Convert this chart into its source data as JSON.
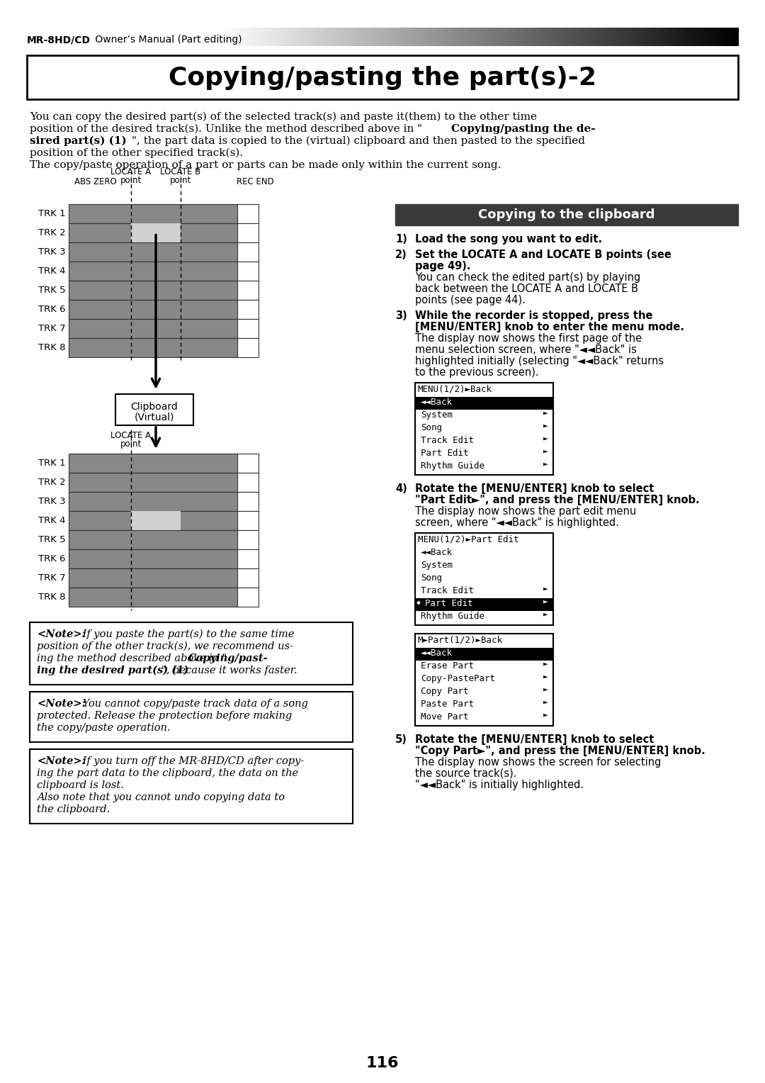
{
  "title": "Copying/pasting the part(s)-2",
  "header_bold": "MR-8HD/CD",
  "header_normal": " Owner’s Manual (Part editing)",
  "page_number": "116",
  "section_title": "Copying to the clipboard",
  "step1_bold": "Load the song you want to edit.",
  "step2_bold": "Set the LOCATE A and LOCATE B points (see\npage 49).",
  "step2_normal": "You can check the edited part(s) by playing\nback between the LOCATE A and LOCATE B\npoints (see page 44).",
  "step3_bold": "While the recorder is stopped, press the\n[MENU/ENTER] knob to enter the menu mode.",
  "step3_normal": "The display now shows the first page of the\nmenu selection screen, where \"◄◄Back\" is\nhighlighted initially (selecting \"◄◄Back\" returns\nto the previous screen).",
  "step4_bold": "Rotate the [MENU/ENTER] knob to select\n\"Part Edit►\", and press the [MENU/ENTER] knob.",
  "step4_normal": "The display now shows the part edit menu\nscreen, where \"◄◄Back\" is highlighted.",
  "step5_bold": "Rotate the [MENU/ENTER] knob to select\n\"Copy Part►\", and press the [MENU/ENTER] knob.",
  "step5_normal": "The display now shows the screen for selecting\nthe source track(s).\n\"◄◄Back\" is initially highlighted.",
  "menu1_title": "MENU(1/2)►Back",
  "menu1_items": [
    "◄◄Back",
    "System",
    "Song",
    "Track Edit",
    "Part Edit",
    "Rhythm Guide"
  ],
  "menu1_arrows": [
    false,
    true,
    true,
    true,
    true,
    true
  ],
  "menu1_highlight": 0,
  "menu2_title": "MENU(1/2)►Part Edit",
  "menu2_items": [
    "◄◄Back",
    "System",
    "Song",
    "Track Edit",
    "Part Edit",
    "Rhythm Guide"
  ],
  "menu2_arrows": [
    false,
    false,
    false,
    true,
    true,
    true
  ],
  "menu2_highlight": 4,
  "menu3_title": "M►Part(1/2)►Back",
  "menu3_items": [
    "◄◄Back",
    "Erase Part",
    "Copy-PastePart",
    "Copy Part",
    "Paste Part",
    "Move Part"
  ],
  "menu3_arrows": [
    false,
    true,
    true,
    true,
    true,
    true
  ],
  "menu3_highlight": 0,
  "track_color_dark": "#888888",
  "track_color_highlight": "#d0d0d0",
  "track_white": "#ffffff",
  "track_border": "#333333"
}
